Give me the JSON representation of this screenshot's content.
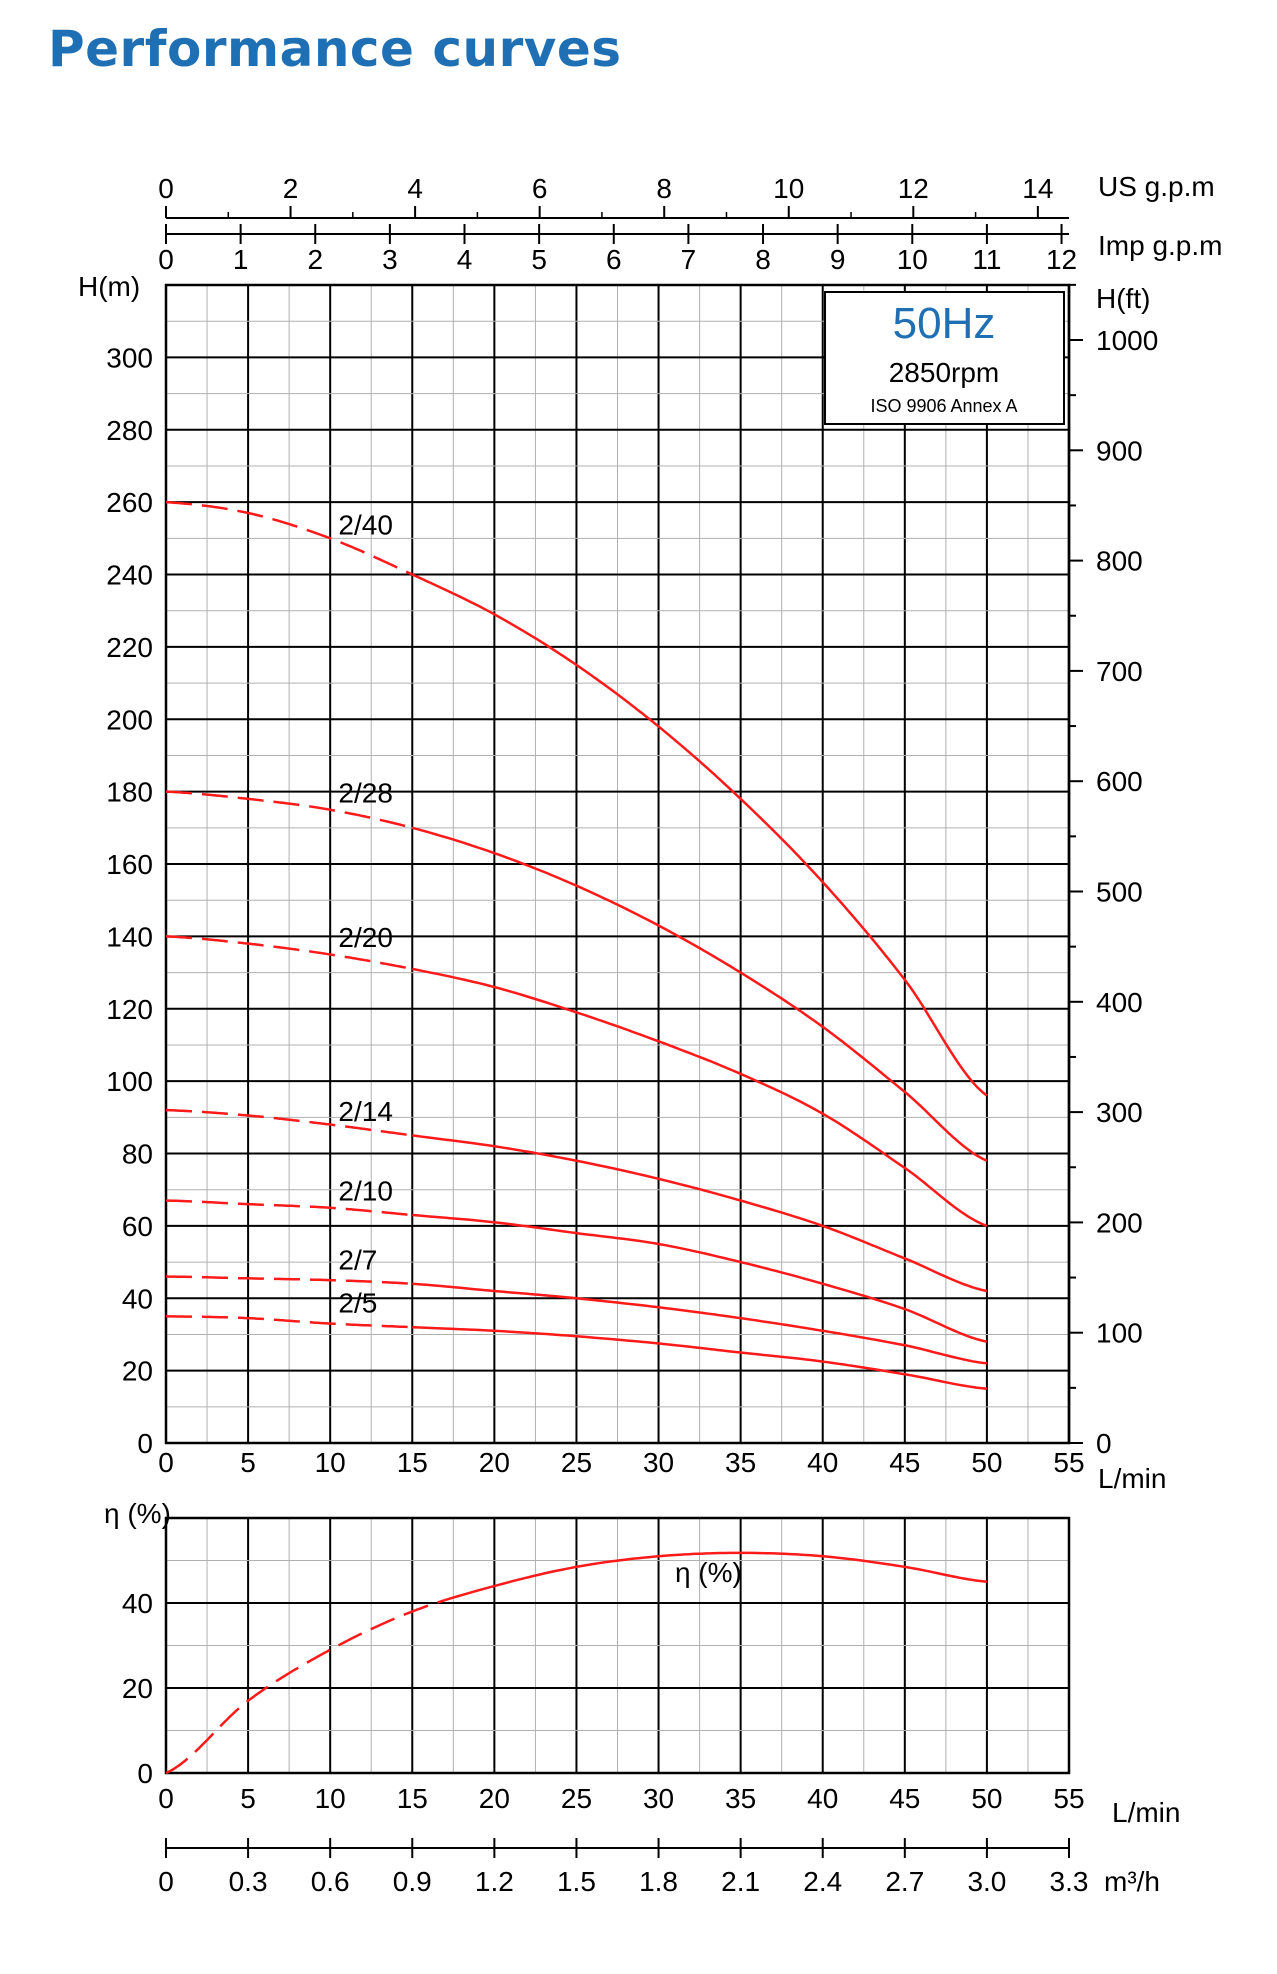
{
  "page_title": "Performance curves",
  "colors": {
    "title": "#1f6fb5",
    "curve": "#ff1a1a",
    "hz": "#1f6fb5",
    "grid": "#000000",
    "minor_grid": "#b0b0b0"
  },
  "info_box": {
    "frequency": "50Hz",
    "speed": "2850rpm",
    "standard": "ISO 9906 Annex A"
  },
  "chart_data": [
    {
      "type": "line",
      "x_unit": "L/min",
      "y_unit": "H(m)",
      "y2_unit": "H(ft)",
      "top_axis_1_unit": "US g.p.m",
      "top_axis_2_unit": "Imp g.p.m",
      "xlim": [
        0,
        55
      ],
      "ylim": [
        0,
        320
      ],
      "x_ticks": [
        0,
        5,
        10,
        15,
        20,
        25,
        30,
        35,
        40,
        45,
        50,
        55
      ],
      "y_ticks": [
        0,
        20,
        40,
        60,
        80,
        100,
        120,
        140,
        160,
        180,
        200,
        220,
        240,
        260,
        280,
        300
      ],
      "y2_ticks": [
        0,
        100,
        200,
        300,
        400,
        500,
        600,
        700,
        800,
        900,
        1000
      ],
      "us_gpm_ticks": [
        0,
        2,
        4,
        6,
        8,
        10,
        12,
        14
      ],
      "imp_gpm_ticks": [
        0,
        1,
        2,
        3,
        4,
        5,
        6,
        7,
        8,
        9,
        10,
        11,
        12
      ],
      "grid": true,
      "series": [
        {
          "name": "2/40",
          "x": [
            0,
            5,
            10,
            15,
            20,
            25,
            30,
            35,
            40,
            45,
            50
          ],
          "y": [
            260,
            257,
            250,
            240,
            229,
            215,
            198,
            178,
            155,
            128,
            96
          ],
          "dashed_until": 15,
          "label_at": [
            10.5,
            251
          ]
        },
        {
          "name": "2/28",
          "x": [
            0,
            5,
            10,
            15,
            20,
            25,
            30,
            35,
            40,
            45,
            50
          ],
          "y": [
            180,
            178,
            175,
            170,
            163,
            154,
            143,
            130,
            115,
            97,
            78
          ],
          "dashed_until": 15,
          "label_at": [
            10.5,
            177
          ]
        },
        {
          "name": "2/20",
          "x": [
            0,
            5,
            10,
            15,
            20,
            25,
            30,
            35,
            40,
            45,
            50
          ],
          "y": [
            140,
            138,
            135,
            131,
            126,
            119,
            111,
            102,
            91,
            76,
            60
          ],
          "dashed_until": 15,
          "label_at": [
            10.5,
            137
          ]
        },
        {
          "name": "2/14",
          "x": [
            0,
            5,
            10,
            15,
            20,
            25,
            30,
            35,
            40,
            45,
            50
          ],
          "y": [
            92,
            90.5,
            88,
            85,
            82,
            78,
            73,
            67,
            60,
            51,
            42
          ],
          "dashed_until": 15,
          "label_at": [
            10.5,
            89
          ]
        },
        {
          "name": "2/10",
          "x": [
            0,
            5,
            10,
            15,
            20,
            25,
            30,
            35,
            40,
            45,
            50
          ],
          "y": [
            67,
            66,
            65,
            63,
            61,
            58,
            55,
            50,
            44,
            37,
            28
          ],
          "dashed_until": 15,
          "label_at": [
            10.5,
            67
          ]
        },
        {
          "name": "2/7",
          "x": [
            0,
            5,
            10,
            15,
            20,
            25,
            30,
            35,
            40,
            45,
            50
          ],
          "y": [
            46,
            45.5,
            45,
            44,
            42,
            40,
            37.5,
            34.5,
            31,
            27,
            22
          ],
          "dashed_until": 15,
          "label_at": [
            10.5,
            48
          ]
        },
        {
          "name": "2/5",
          "x": [
            0,
            5,
            10,
            15,
            20,
            25,
            30,
            35,
            40,
            45,
            50
          ],
          "y": [
            35,
            34.5,
            33,
            32,
            31,
            29.5,
            27.5,
            25,
            22.5,
            19,
            15
          ],
          "dashed_until": 15,
          "label_at": [
            10.5,
            36
          ]
        }
      ]
    },
    {
      "type": "line",
      "x_unit": "L/min",
      "y_unit": "η (%)",
      "bottom_axis_unit": "m³/h",
      "xlim": [
        0,
        55
      ],
      "ylim": [
        0,
        60
      ],
      "x_ticks": [
        0,
        5,
        10,
        15,
        20,
        25,
        30,
        35,
        40,
        45,
        50,
        55
      ],
      "y_ticks": [
        0,
        20,
        40
      ],
      "m3h_ticks": [
        "0",
        "0.3",
        "0.6",
        "0.9",
        "1.2",
        "1.5",
        "1.8",
        "2.1",
        "2.4",
        "2.7",
        "3.0",
        "3.3"
      ],
      "grid": true,
      "series": [
        {
          "name": "η (%)",
          "x": [
            0,
            5,
            10,
            15,
            20,
            25,
            30,
            35,
            40,
            45,
            50
          ],
          "y": [
            0,
            17,
            29,
            38,
            44,
            48.5,
            51,
            51.8,
            51,
            48.5,
            45
          ],
          "dashed_until": 17,
          "label_at": [
            31,
            45
          ]
        }
      ]
    }
  ]
}
